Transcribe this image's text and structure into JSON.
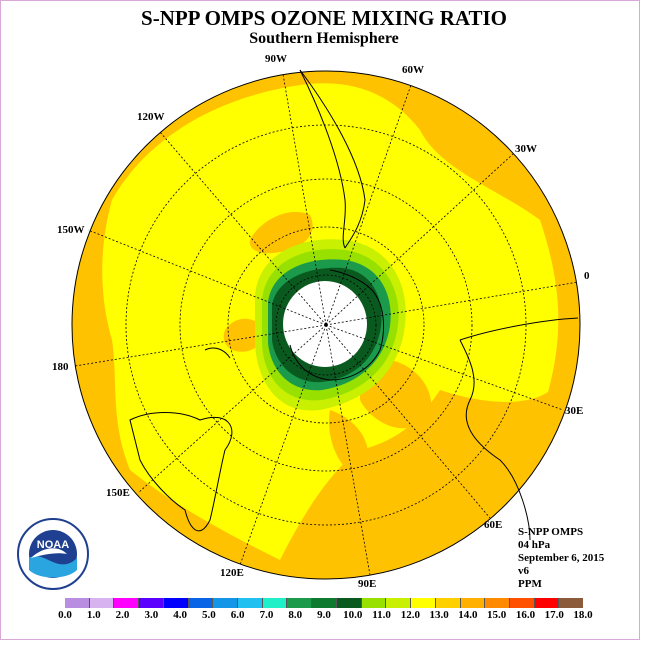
{
  "title": "S-NPP OMPS OZONE MIXING RATIO",
  "subtitle": "Southern Hemisphere",
  "longitude_labels": {
    "l90w": "90W",
    "l60w": "60W",
    "l120w": "120W",
    "l30w": "30W",
    "l150w": "150W",
    "l0": "0",
    "l180": "180",
    "l30e": "30E",
    "l150e": "150E",
    "l60e": "60E",
    "l120e": "120E",
    "l90e": "90E"
  },
  "info": {
    "instrument": "S-NPP OMPS",
    "level": "04 hPa",
    "date": "September 6, 2015",
    "version": "v6",
    "units": "PPM"
  },
  "logo": {
    "text": "NOAA"
  },
  "colorbar": {
    "labels": [
      "0.0",
      "1.0",
      "2.0",
      "3.0",
      "4.0",
      "5.0",
      "6.0",
      "7.0",
      "8.0",
      "9.0",
      "10.0",
      "11.0",
      "12.0",
      "13.0",
      "14.0",
      "15.0",
      "16.0",
      "17.0",
      "18.0"
    ],
    "colors": [
      "#b98ee0",
      "#d7b4ef",
      "#ff00ff",
      "#5a00ff",
      "#0000ff",
      "#0a64e6",
      "#1496e8",
      "#20c0f0",
      "#20f0c8",
      "#1a9a4a",
      "#0e7a30",
      "#0a5a20",
      "#98e000",
      "#c8f000",
      "#ffff00",
      "#ffd000",
      "#ffb000",
      "#ff8a00",
      "#ff5000",
      "#ff0000",
      "#8b5a3a"
    ]
  }
}
